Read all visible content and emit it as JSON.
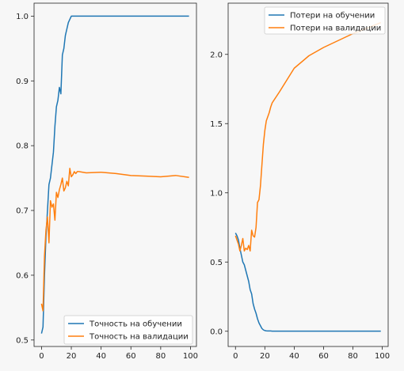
{
  "chart_data": [
    {
      "type": "line",
      "x": [
        0,
        1,
        2,
        3,
        4,
        5,
        6,
        7,
        8,
        9,
        10,
        11,
        12,
        13,
        14,
        15,
        16,
        17,
        18,
        19,
        20,
        21,
        22,
        23,
        24,
        25,
        30,
        40,
        50,
        60,
        70,
        80,
        90,
        99
      ],
      "xlim": [
        -5,
        104
      ],
      "ylim": [
        0.49,
        1.02
      ],
      "xticks": [
        0,
        20,
        40,
        60,
        80,
        100
      ],
      "yticks": [
        0.5,
        0.6,
        0.7,
        0.8,
        0.9,
        1.0
      ],
      "legend_loc": "lower-right",
      "series": [
        {
          "name": "Точность на обучении",
          "color": "#1f77b4",
          "values": [
            0.51,
            0.52,
            0.6,
            0.66,
            0.7,
            0.74,
            0.75,
            0.77,
            0.79,
            0.83,
            0.86,
            0.87,
            0.89,
            0.88,
            0.94,
            0.95,
            0.97,
            0.98,
            0.99,
            0.995,
            1.0,
            1.0,
            1.0,
            1.0,
            1.0,
            1.0,
            1.0,
            1.0,
            1.0,
            1.0,
            1.0,
            1.0,
            1.0,
            1.0
          ]
        },
        {
          "name": "Точность на валидации",
          "color": "#ff7f0e",
          "values": [
            0.556,
            0.545,
            0.63,
            0.67,
            0.69,
            0.65,
            0.715,
            0.705,
            0.71,
            0.685,
            0.728,
            0.72,
            0.732,
            0.74,
            0.75,
            0.73,
            0.735,
            0.745,
            0.738,
            0.765,
            0.752,
            0.755,
            0.76,
            0.757,
            0.76,
            0.76,
            0.758,
            0.759,
            0.757,
            0.754,
            0.753,
            0.752,
            0.754,
            0.751
          ]
        }
      ]
    },
    {
      "type": "line",
      "x": [
        0,
        1,
        2,
        3,
        4,
        5,
        6,
        7,
        8,
        9,
        10,
        11,
        12,
        13,
        14,
        15,
        16,
        17,
        18,
        19,
        20,
        21,
        22,
        23,
        24,
        25,
        30,
        40,
        50,
        60,
        70,
        80,
        90,
        99
      ],
      "xlim": [
        -5,
        104
      ],
      "ylim": [
        -0.11,
        2.37
      ],
      "xticks": [
        0,
        20,
        40,
        60,
        80,
        100
      ],
      "yticks": [
        0.0,
        0.5,
        1.0,
        1.5,
        2.0
      ],
      "legend_loc": "upper-right",
      "series": [
        {
          "name": "Потери на обучении",
          "color": "#1f77b4",
          "values": [
            0.71,
            0.69,
            0.66,
            0.6,
            0.55,
            0.5,
            0.48,
            0.44,
            0.4,
            0.36,
            0.3,
            0.27,
            0.2,
            0.16,
            0.13,
            0.09,
            0.06,
            0.04,
            0.02,
            0.01,
            0.005,
            0.003,
            0.002,
            0.002,
            0.002,
            0.001,
            0.001,
            0.001,
            0.001,
            0.001,
            0.001,
            0.001,
            0.001,
            0.001
          ]
        },
        {
          "name": "Потери на валидации",
          "color": "#ff7f0e",
          "values": [
            0.69,
            0.66,
            0.63,
            0.58,
            0.62,
            0.67,
            0.58,
            0.6,
            0.59,
            0.62,
            0.58,
            0.73,
            0.69,
            0.68,
            0.75,
            0.93,
            0.95,
            1.05,
            1.2,
            1.35,
            1.45,
            1.52,
            1.55,
            1.58,
            1.62,
            1.65,
            1.73,
            1.9,
            1.99,
            2.05,
            2.1,
            2.15,
            2.19,
            2.23
          ]
        }
      ]
    }
  ]
}
